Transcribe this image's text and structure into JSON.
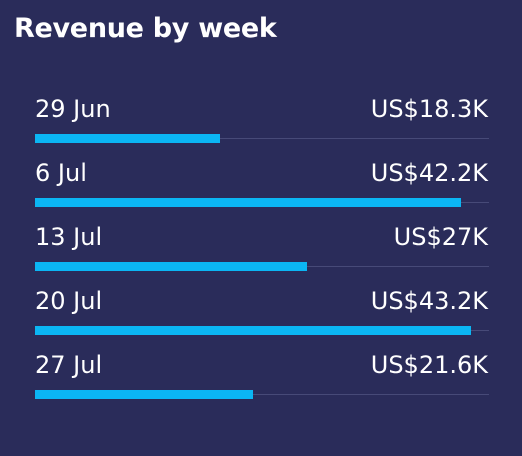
{
  "title": "Revenue by week",
  "colors": {
    "background": "#2a2c5a",
    "bar": "#0bb6f4",
    "track": "#474a78",
    "text": "#ffffff"
  },
  "chart_data": {
    "type": "bar",
    "orientation": "horizontal",
    "title": "Revenue by week",
    "categories": [
      "29 Jun",
      "6 Jul",
      "13 Jul",
      "20 Jul",
      "27 Jul"
    ],
    "values": [
      18.3,
      42.2,
      27,
      43.2,
      21.6
    ],
    "value_labels": [
      "US$18.3K",
      "US$42.2K",
      "US$27K",
      "US$43.2K",
      "US$21.6K"
    ],
    "unit": "thousand US$",
    "xlim": [
      0,
      45
    ],
    "grid": false,
    "legend": "none"
  }
}
